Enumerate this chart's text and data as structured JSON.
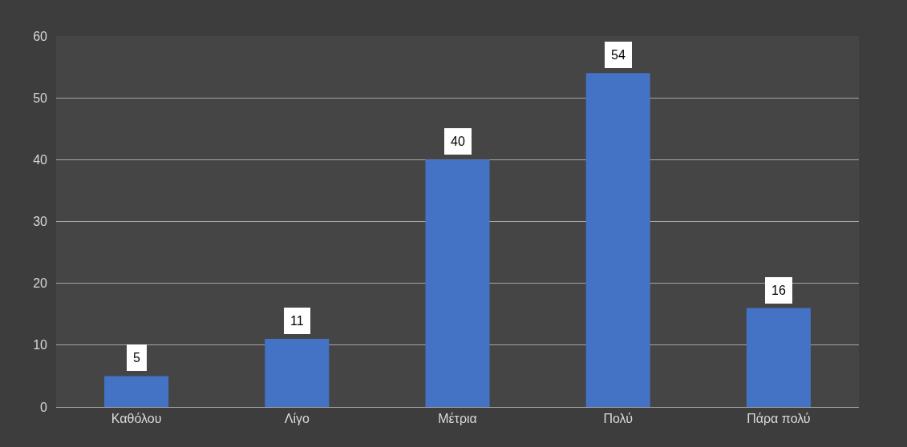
{
  "chart_data": {
    "type": "bar",
    "categories": [
      "Καθόλου",
      "Λίγο",
      "Μέτρια",
      "Πολύ",
      "Πάρα πολύ"
    ],
    "values": [
      5,
      11,
      40,
      54,
      16
    ],
    "color": "#4472c4",
    "ylim": [
      0,
      60
    ],
    "yticks": [
      0,
      10,
      20,
      30,
      40,
      50,
      60
    ],
    "grid": "y",
    "data_labels": true
  }
}
